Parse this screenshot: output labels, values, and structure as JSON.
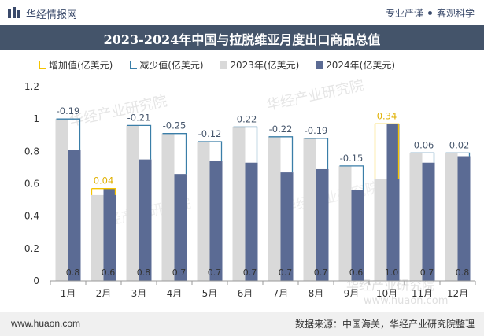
{
  "header": {
    "brand": "华经情报网",
    "tagline_a": "专业严谨",
    "tagline_b": "客观科学"
  },
  "footer": {
    "website": "www.huaon.com",
    "source": "数据来源：中国海关，华经产业研究院整理"
  },
  "colors": {
    "increase": "#f5c400",
    "decrease": "#3a7ea8",
    "y2023": "#d9d9d9",
    "y2024": "#5b6b94",
    "titlebar": "#44546a"
  },
  "chart_data": {
    "type": "bar",
    "title": "2023-2024年中国与拉脱维亚月度出口商品总值",
    "legend": [
      "增加值(亿美元)",
      "减少值(亿美元)",
      "2023年(亿美元)",
      "2024年(亿美元)"
    ],
    "categories": [
      "1月",
      "2月",
      "3月",
      "4月",
      "5月",
      "6月",
      "7月",
      "8月",
      "9月",
      "10月",
      "11月",
      "12月"
    ],
    "series": [
      {
        "name": "2023年(亿美元)",
        "values": [
          1.0,
          0.53,
          0.96,
          0.91,
          0.86,
          0.95,
          0.89,
          0.88,
          0.71,
          0.63,
          0.79,
          0.79
        ]
      },
      {
        "name": "2024年(亿美元)",
        "values": [
          0.81,
          0.57,
          0.75,
          0.66,
          0.74,
          0.73,
          0.67,
          0.69,
          0.56,
          0.97,
          0.73,
          0.77
        ]
      }
    ],
    "bottom_labels": [
      "0.8",
      "0.6",
      "0.8",
      "0.7",
      "0.7",
      "0.7",
      "0.7",
      "0.7",
      "0.6",
      "1.0",
      "0.7",
      "0.8"
    ],
    "diff_labels": [
      "-0.19",
      "0.04",
      "-0.21",
      "-0.25",
      "-0.12",
      "-0.22",
      "-0.22",
      "-0.19",
      "-0.15",
      "0.34",
      "-0.06",
      "-0.02"
    ],
    "yticks": [
      "0",
      "0.2",
      "0.4",
      "0.6",
      "0.8",
      "1",
      "1.2"
    ],
    "ylim": [
      0,
      1.2
    ]
  }
}
